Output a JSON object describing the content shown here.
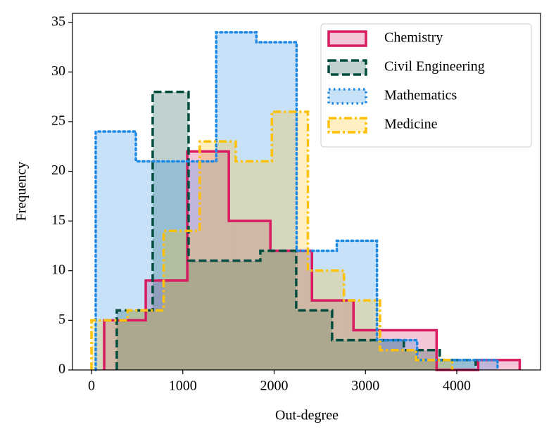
{
  "chart_data": {
    "type": "histogram",
    "xlabel": "Out-degree",
    "ylabel": "Frequency",
    "xlim": [
      -208,
      4917
    ],
    "ylim": [
      0,
      35.9
    ],
    "xticks": [
      0,
      1000,
      2000,
      3000,
      4000
    ],
    "yticks": [
      0,
      5,
      10,
      15,
      20,
      25,
      30,
      35
    ],
    "legend": "upper right",
    "series": [
      {
        "name": "Chemistry",
        "color": "#d81b60",
        "linestyle": "solid",
        "bins": [
          139,
          594,
          1049,
          1504,
          1959,
          2414,
          2869,
          3324,
          3779,
          4234,
          4689
        ],
        "values": [
          5,
          9,
          22,
          15,
          12,
          7,
          4,
          4,
          0,
          1
        ]
      },
      {
        "name": "Civil Engineering",
        "color": "#004d40",
        "linestyle": "dashed",
        "bins": [
          277,
          670,
          1063,
          1456,
          1849,
          2242,
          2635,
          3028,
          3421,
          3814,
          4207
        ],
        "values": [
          6,
          28,
          11,
          11,
          12,
          6,
          3,
          3,
          2,
          1
        ]
      },
      {
        "name": "Mathematics",
        "color": "#1e88e5",
        "linestyle": "dotted",
        "bins": [
          46,
          486,
          926,
          1366,
          1806,
          2246,
          2686,
          3126,
          3566,
          4006,
          4446
        ],
        "values": [
          24,
          21,
          21,
          34,
          33,
          12,
          13,
          3,
          1,
          1
        ]
      },
      {
        "name": "Medicine",
        "color": "#ffc107",
        "linestyle": "dashdot",
        "bins": [
          0,
          395,
          790,
          1185,
          1580,
          1975,
          2370,
          2765,
          3160,
          3555,
          3950
        ],
        "values": [
          5,
          6,
          14,
          23,
          21,
          26,
          10,
          7,
          2,
          1
        ]
      }
    ]
  }
}
